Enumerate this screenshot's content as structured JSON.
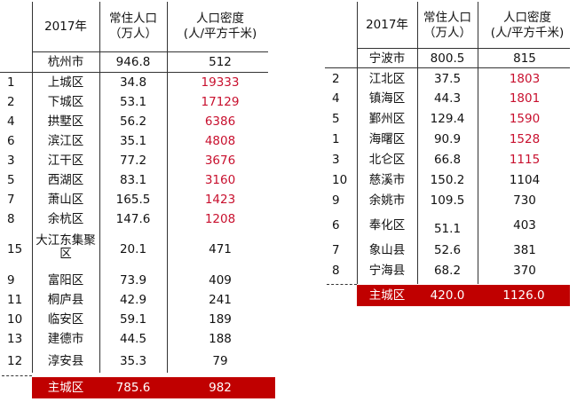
{
  "left": {
    "header": {
      "year": "2017年",
      "pop_line1": "常住人口",
      "pop_line2": "（万人）",
      "den_line1": "人口密度",
      "den_line2": "(人/平方千米)"
    },
    "city": {
      "name": "杭州市",
      "pop": "946.8",
      "den": "512"
    },
    "rows": [
      {
        "rank": "1",
        "name": "上城区",
        "pop": "34.8",
        "den": "19333"
      },
      {
        "rank": "2",
        "name": "下城区",
        "pop": "53.1",
        "den": "17129"
      },
      {
        "rank": "4",
        "name": "拱墅区",
        "pop": "56.2",
        "den": "6386"
      },
      {
        "rank": "6",
        "name": "滨江区",
        "pop": "35.1",
        "den": "4808"
      },
      {
        "rank": "3",
        "name": "江干区",
        "pop": "77.2",
        "den": "3676"
      },
      {
        "rank": "5",
        "name": "西湖区",
        "pop": "83.1",
        "den": "3160"
      },
      {
        "rank": "7",
        "name": "萧山区",
        "pop": "165.5",
        "den": "1423"
      },
      {
        "rank": "8",
        "name": "余杭区",
        "pop": "147.6",
        "den": "1208"
      },
      {
        "rank": "15",
        "name": "大江东集聚区",
        "pop": "20.1",
        "den": "471"
      },
      {
        "rank": "9",
        "name": "富阳区",
        "pop": "73.9",
        "den": "409"
      },
      {
        "rank": "11",
        "name": "桐庐县",
        "pop": "42.9",
        "den": "241"
      },
      {
        "rank": "10",
        "name": "临安区",
        "pop": "59.1",
        "den": "189"
      },
      {
        "rank": "13",
        "name": "建德市",
        "pop": "44.5",
        "den": "188"
      },
      {
        "rank": "12",
        "name": "淳安县",
        "pop": "35.3",
        "den": "79"
      }
    ],
    "total": {
      "name": "主城区",
      "pop": "785.6",
      "den": "982"
    }
  },
  "right": {
    "header": {
      "year": "2017年",
      "pop_line1": "常住人口",
      "pop_line2": "（万人）",
      "den_line1": "人口密度",
      "den_line2": "(人/平方千米)"
    },
    "city": {
      "name": "宁波市",
      "pop": "800.5",
      "den": "815"
    },
    "rows": [
      {
        "rank": "2",
        "name": "江北区",
        "pop": "37.5",
        "den": "1803"
      },
      {
        "rank": "4",
        "name": "镇海区",
        "pop": "44.3",
        "den": "1801"
      },
      {
        "rank": "5",
        "name": "鄞州区",
        "pop": "129.4",
        "den": "1590"
      },
      {
        "rank": "1",
        "name": "海曙区",
        "pop": "90.9",
        "den": "1528"
      },
      {
        "rank": "3",
        "name": "北仑区",
        "pop": "66.8",
        "den": "1115"
      },
      {
        "rank": "10",
        "name": "慈溪市",
        "pop": "150.2",
        "den": "1104"
      },
      {
        "rank": "9",
        "name": "余姚市",
        "pop": "109.5",
        "den": "730"
      },
      {
        "rank": "6",
        "name": "奉化区",
        "pop": "51.1",
        "den": "403"
      },
      {
        "rank": "7",
        "name": "象山县",
        "pop": "52.6",
        "den": "381"
      },
      {
        "rank": "8",
        "name": "宁海县",
        "pop": "68.2",
        "den": "370"
      }
    ],
    "total": {
      "name": "主城区",
      "pop": "420.0",
      "den": "1126.0"
    }
  },
  "colors": {
    "highlight_text": "#c8102e",
    "total_bg": "#c00000"
  }
}
